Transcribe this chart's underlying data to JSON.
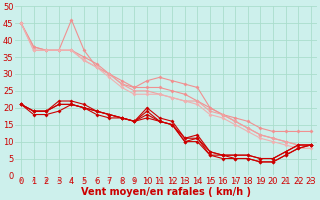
{
  "xlabel": "Vent moyen/en rafales ( km/h )",
  "bg_color": "#cdf0ec",
  "grid_color": "#aaddcc",
  "xlim": [
    -0.5,
    23.5
  ],
  "ylim": [
    0,
    50
  ],
  "xticks": [
    0,
    1,
    2,
    3,
    4,
    5,
    6,
    7,
    8,
    9,
    10,
    11,
    12,
    13,
    14,
    15,
    16,
    17,
    18,
    19,
    20,
    21,
    22,
    23
  ],
  "yticks": [
    0,
    5,
    10,
    15,
    20,
    25,
    30,
    35,
    40,
    45,
    50
  ],
  "lines_light": [
    {
      "x": [
        0,
        1,
        2,
        3,
        4,
        5,
        6,
        7,
        8,
        9,
        10,
        11,
        12,
        13,
        14,
        15,
        16,
        17,
        18,
        19,
        20,
        21,
        22,
        23
      ],
      "y": [
        45,
        38,
        37,
        37,
        46,
        37,
        32,
        30,
        27,
        26,
        28,
        29,
        28,
        27,
        26,
        20,
        18,
        17,
        16,
        14,
        13,
        13,
        13,
        13
      ],
      "color": "#f09090"
    },
    {
      "x": [
        0,
        1,
        2,
        3,
        4,
        5,
        6,
        7,
        8,
        9,
        10,
        11,
        12,
        13,
        14,
        15,
        16,
        17,
        18,
        19,
        20,
        21,
        22,
        23
      ],
      "y": [
        45,
        38,
        37,
        37,
        37,
        35,
        33,
        30,
        28,
        26,
        26,
        26,
        25,
        24,
        22,
        20,
        18,
        16,
        14,
        12,
        11,
        10,
        9,
        9
      ],
      "color": "#f09090"
    },
    {
      "x": [
        0,
        1,
        2,
        3,
        4,
        5,
        6,
        7,
        8,
        9,
        10,
        11,
        12,
        13,
        14,
        15,
        16,
        17,
        18,
        19,
        20,
        21,
        22,
        23
      ],
      "y": [
        45,
        37,
        37,
        37,
        37,
        34,
        32,
        30,
        27,
        25,
        25,
        24,
        23,
        22,
        22,
        19,
        18,
        16,
        14,
        12,
        11,
        10,
        9,
        9
      ],
      "color": "#f0a0a0"
    },
    {
      "x": [
        0,
        1,
        2,
        3,
        4,
        5,
        6,
        7,
        8,
        9,
        10,
        11,
        12,
        13,
        14,
        15,
        16,
        17,
        18,
        19,
        20,
        21,
        22,
        23
      ],
      "y": [
        45,
        37,
        37,
        37,
        37,
        34,
        32,
        29,
        26,
        24,
        24,
        24,
        23,
        22,
        21,
        18,
        17,
        15,
        13,
        11,
        10,
        9,
        8,
        8
      ],
      "color": "#f0b0b0"
    }
  ],
  "lines_dark": [
    {
      "x": [
        0,
        1,
        2,
        3,
        4,
        5,
        6,
        7,
        8,
        9,
        10,
        11,
        12,
        13,
        14,
        15,
        16,
        17,
        18,
        19,
        20,
        21,
        22,
        23
      ],
      "y": [
        21,
        19,
        19,
        22,
        22,
        21,
        19,
        18,
        17,
        16,
        20,
        17,
        16,
        11,
        12,
        7,
        6,
        6,
        6,
        5,
        5,
        7,
        9,
        9
      ],
      "color": "#cc0000"
    },
    {
      "x": [
        0,
        1,
        2,
        3,
        4,
        5,
        6,
        7,
        8,
        9,
        10,
        11,
        12,
        13,
        14,
        15,
        16,
        17,
        18,
        19,
        20,
        21,
        22,
        23
      ],
      "y": [
        21,
        19,
        19,
        21,
        21,
        20,
        19,
        18,
        17,
        16,
        19,
        16,
        15,
        11,
        11,
        7,
        6,
        6,
        6,
        5,
        5,
        7,
        9,
        9
      ],
      "color": "#cc0000"
    },
    {
      "x": [
        0,
        1,
        2,
        3,
        4,
        5,
        6,
        7,
        8,
        9,
        10,
        11,
        12,
        13,
        14,
        15,
        16,
        17,
        18,
        19,
        20,
        21,
        22,
        23
      ],
      "y": [
        21,
        19,
        19,
        21,
        21,
        20,
        19,
        18,
        17,
        16,
        18,
        16,
        15,
        10,
        11,
        6,
        6,
        5,
        5,
        4,
        4,
        6,
        8,
        9
      ],
      "color": "#cc0000"
    },
    {
      "x": [
        0,
        1,
        2,
        3,
        4,
        5,
        6,
        7,
        8,
        9,
        10,
        11,
        12,
        13,
        14,
        15,
        16,
        17,
        18,
        19,
        20,
        21,
        22,
        23
      ],
      "y": [
        21,
        18,
        18,
        19,
        21,
        20,
        18,
        17,
        17,
        16,
        17,
        16,
        15,
        10,
        10,
        6,
        5,
        5,
        5,
        4,
        4,
        6,
        8,
        9
      ],
      "color": "#cc0000"
    }
  ],
  "marker": "D",
  "markersize": 2.0,
  "xlabel_color": "#cc0000",
  "xlabel_fontsize": 7,
  "axis_label_color": "#cc0000",
  "tick_fontsize": 6,
  "lw": 0.8,
  "arrow_directions": [
    0,
    0,
    0,
    0,
    0,
    0,
    45,
    45,
    45,
    0,
    0,
    0,
    0,
    45,
    45,
    135,
    135,
    135,
    90,
    90,
    135,
    135,
    135,
    90
  ]
}
